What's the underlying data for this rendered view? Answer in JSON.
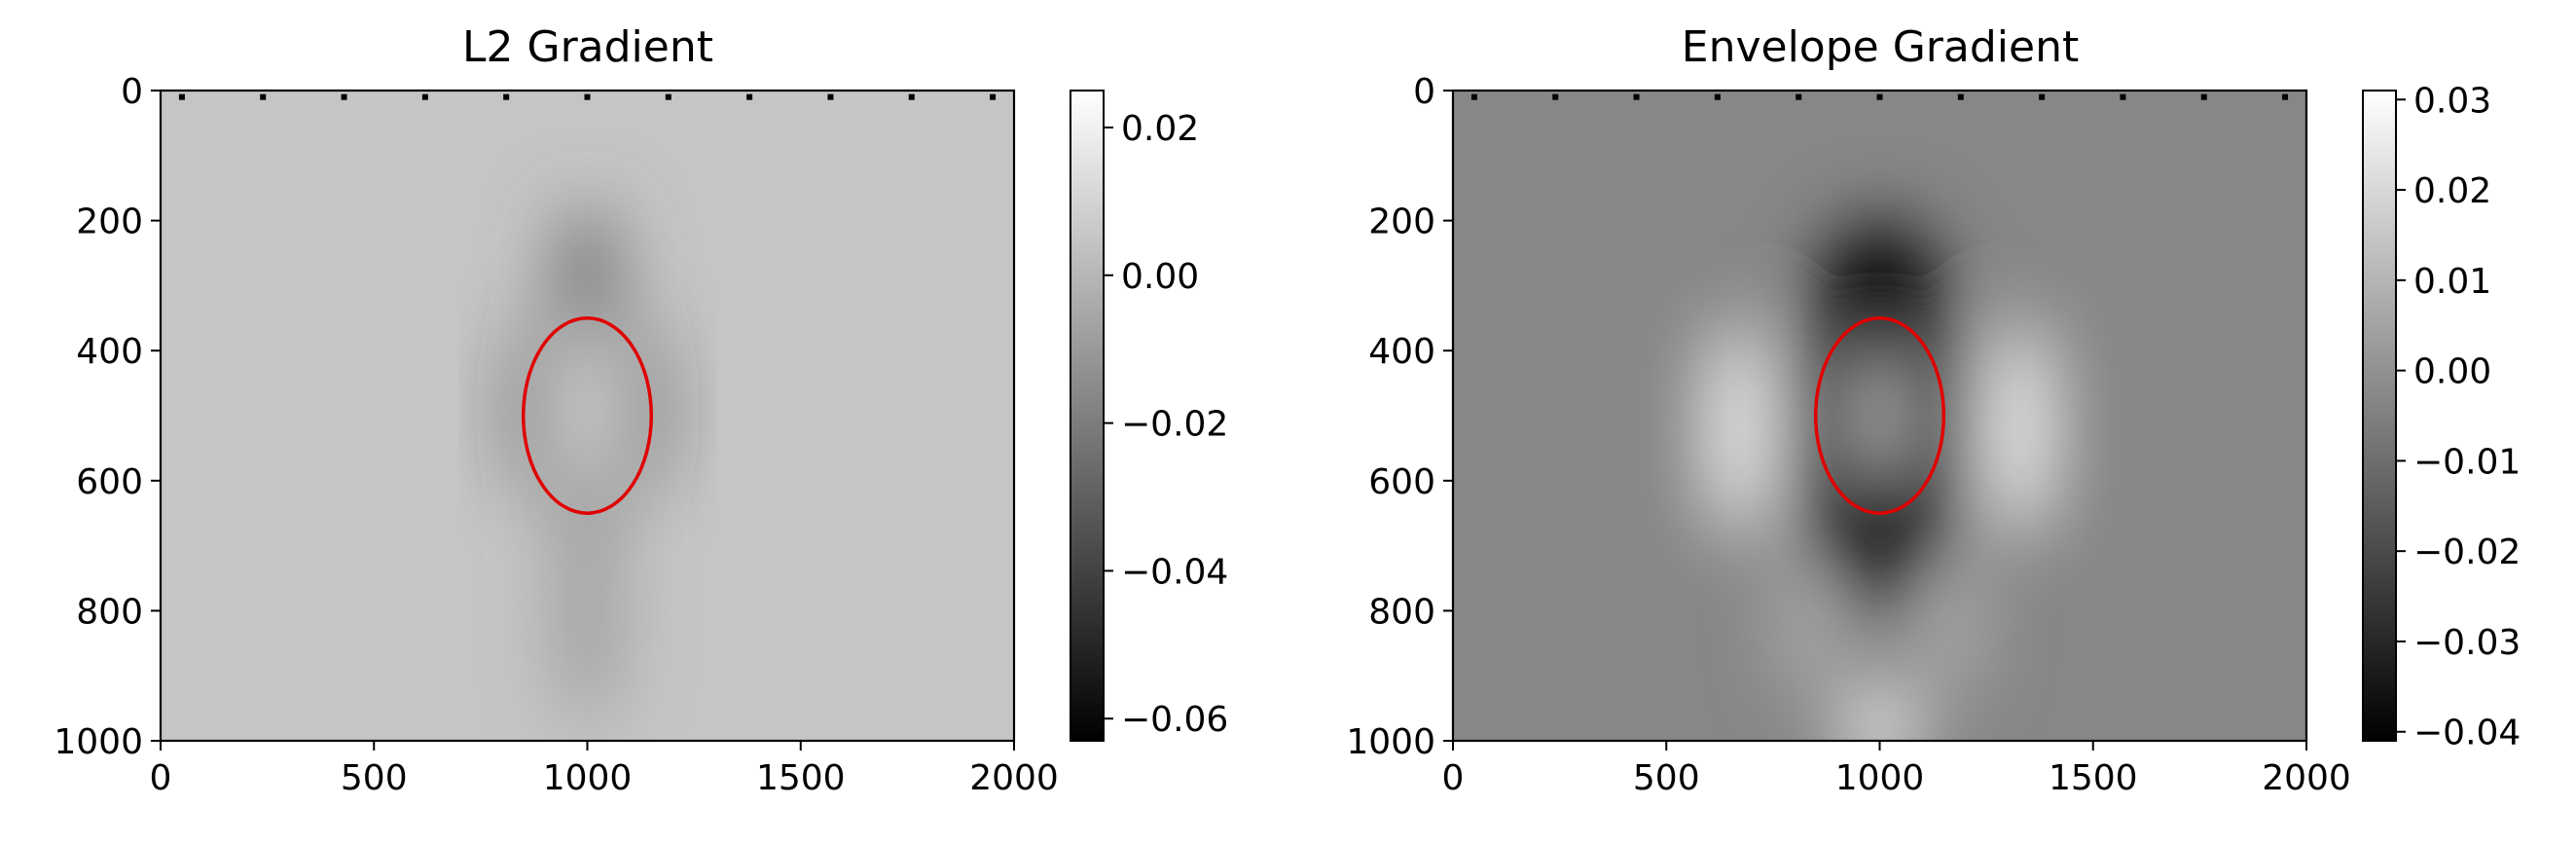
{
  "chart_data": [
    {
      "type": "heatmap",
      "title": "L2 Gradient",
      "xlabel": "",
      "ylabel": "",
      "xlim": [
        0,
        2000
      ],
      "ylim": [
        1000,
        0
      ],
      "x_ticks": [
        {
          "value": 0,
          "label": "0"
        },
        {
          "value": 500,
          "label": "500"
        },
        {
          "value": 1000,
          "label": "1000"
        },
        {
          "value": 1500,
          "label": "1500"
        },
        {
          "value": 2000,
          "label": "2000"
        }
      ],
      "y_ticks": [
        {
          "value": 0,
          "label": "0"
        },
        {
          "value": 200,
          "label": "200"
        },
        {
          "value": 400,
          "label": "400"
        },
        {
          "value": 600,
          "label": "600"
        },
        {
          "value": 800,
          "label": "800"
        },
        {
          "value": 1000,
          "label": "1000"
        }
      ],
      "colormap": "gray",
      "colorbar": {
        "vmin": -0.063,
        "vmax": 0.025,
        "ticks": [
          {
            "value": 0.02,
            "label": "0.02"
          },
          {
            "value": 0.0,
            "label": "0.00"
          },
          {
            "value": -0.02,
            "label": "−0.02"
          },
          {
            "value": -0.04,
            "label": "−0.04"
          },
          {
            "value": -0.06,
            "label": "−0.06"
          }
        ]
      },
      "background_value": 0.005,
      "sources": {
        "x": [
          50,
          240,
          430,
          620,
          810,
          1000,
          1190,
          1380,
          1570,
          1760,
          1950
        ],
        "y": 10
      },
      "ellipse": {
        "cx": 1000,
        "cy": 500,
        "rx": 150,
        "ry": 150,
        "color": "#e00000"
      },
      "image_features": [
        {
          "kind": "blob",
          "x": 1000,
          "y": 490,
          "sx": 150,
          "sy": 170,
          "value": -0.068
        },
        {
          "kind": "blob",
          "x": 1000,
          "y": 490,
          "sx": 55,
          "sy": 150,
          "value": 0.035
        },
        {
          "kind": "blob",
          "x": 1000,
          "y": 270,
          "sx": 60,
          "sy": 90,
          "value": -0.03
        },
        {
          "kind": "blob",
          "x": 1000,
          "y": 800,
          "sx": 60,
          "sy": 180,
          "value": -0.012
        }
      ]
    },
    {
      "type": "heatmap",
      "title": "Envelope Gradient",
      "xlabel": "",
      "ylabel": "",
      "xlim": [
        0,
        2000
      ],
      "ylim": [
        1000,
        0
      ],
      "x_ticks": [
        {
          "value": 0,
          "label": "0"
        },
        {
          "value": 500,
          "label": "500"
        },
        {
          "value": 1000,
          "label": "1000"
        },
        {
          "value": 1500,
          "label": "1500"
        },
        {
          "value": 2000,
          "label": "2000"
        }
      ],
      "y_ticks": [
        {
          "value": 0,
          "label": "0"
        },
        {
          "value": 200,
          "label": "200"
        },
        {
          "value": 400,
          "label": "400"
        },
        {
          "value": 600,
          "label": "600"
        },
        {
          "value": 800,
          "label": "800"
        },
        {
          "value": 1000,
          "label": "1000"
        }
      ],
      "colormap": "gray",
      "colorbar": {
        "vmin": -0.041,
        "vmax": 0.031,
        "ticks": [
          {
            "value": 0.03,
            "label": "0.03"
          },
          {
            "value": 0.02,
            "label": "0.02"
          },
          {
            "value": 0.01,
            "label": "0.01"
          },
          {
            "value": 0.0,
            "label": "0.00"
          },
          {
            "value": -0.01,
            "label": "−0.01"
          },
          {
            "value": -0.02,
            "label": "−0.02"
          },
          {
            "value": -0.03,
            "label": "−0.03"
          },
          {
            "value": -0.04,
            "label": "−0.04"
          }
        ]
      },
      "background_value": -0.003,
      "sources": {
        "x": [
          50,
          240,
          430,
          620,
          810,
          1000,
          1190,
          1380,
          1570,
          1760,
          1950
        ],
        "y": 10
      },
      "ellipse": {
        "cx": 1000,
        "cy": 500,
        "rx": 150,
        "ry": 150,
        "color": "#e00000"
      },
      "image_features": [
        {
          "kind": "blob",
          "x": 1000,
          "y": 500,
          "sx": 190,
          "sy": 300,
          "value": -0.04
        },
        {
          "kind": "blob",
          "x": 1000,
          "y": 500,
          "sx": 40,
          "sy": 110,
          "value": 0.022
        },
        {
          "kind": "blob",
          "x": 670,
          "y": 520,
          "sx": 70,
          "sy": 170,
          "value": 0.036
        },
        {
          "kind": "blob",
          "x": 1330,
          "y": 520,
          "sx": 70,
          "sy": 170,
          "value": 0.036
        },
        {
          "kind": "blob",
          "x": 1000,
          "y": 980,
          "sx": 80,
          "sy": 70,
          "value": 0.028
        },
        {
          "kind": "blob",
          "x": 830,
          "y": 820,
          "sx": 45,
          "sy": 110,
          "value": 0.014
        },
        {
          "kind": "blob",
          "x": 1170,
          "y": 820,
          "sx": 45,
          "sy": 110,
          "value": 0.014
        }
      ]
    }
  ]
}
